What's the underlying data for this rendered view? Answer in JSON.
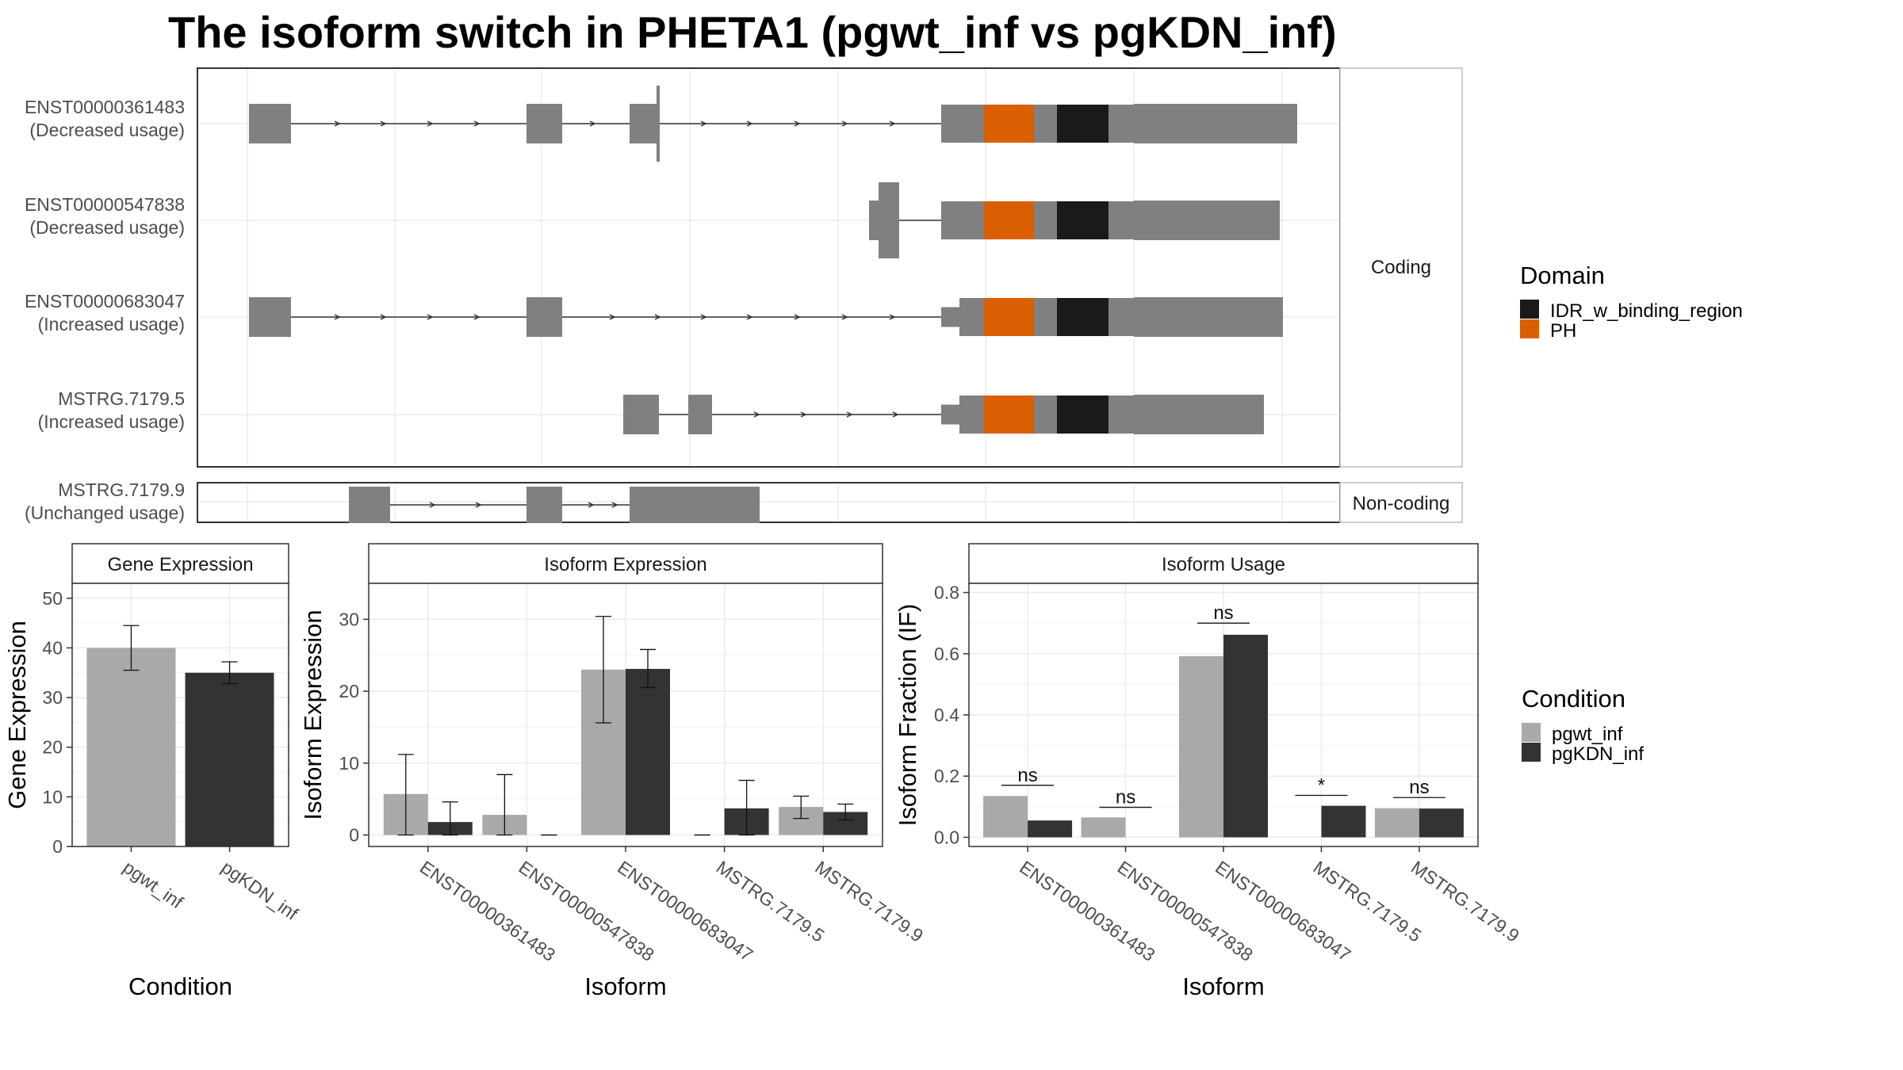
{
  "title": "The isoform switch in PHETA1 (pgwt_inf vs pgKDN_inf)",
  "colors": {
    "exon": "#808080",
    "IDR_w_binding_region": "#1a1a1a",
    "PH": "#d95f02",
    "pgwt_inf": "#a9a9a9",
    "pgKDN_inf": "#333333",
    "grid": "#ebebeb",
    "strip_bg": "#ffffff"
  },
  "structure": {
    "coding_strip": "Coding",
    "noncoding_strip": "Non-coding",
    "isoforms": [
      {
        "id": "ENST00000361483",
        "usage": "(Decreased usage)",
        "group": "coding"
      },
      {
        "id": "ENST00000547838",
        "usage": "(Decreased usage)",
        "group": "coding"
      },
      {
        "id": "ENST00000683047",
        "usage": "(Increased usage)",
        "group": "coding"
      },
      {
        "id": "MSTRG.7179.5",
        "usage": "(Increased usage)",
        "group": "coding"
      },
      {
        "id": "MSTRG.7179.9",
        "usage": "(Unchanged usage)",
        "group": "noncoding"
      }
    ]
  },
  "legends": {
    "domain_title": "Domain",
    "domain_items": [
      {
        "label": "IDR_w_binding_region",
        "color": "#1a1a1a"
      },
      {
        "label": "PH",
        "color": "#d95f02"
      }
    ],
    "condition_title": "Condition",
    "condition_items": [
      {
        "label": "pgwt_inf",
        "color": "#a9a9a9"
      },
      {
        "label": "pgKDN_inf",
        "color": "#333333"
      }
    ]
  },
  "chart_data": [
    {
      "type": "bar",
      "title": "Gene Expression",
      "xlabel": "Condition",
      "ylabel": "Gene Expression",
      "categories": [
        "pgwt_inf",
        "pgKDN_inf"
      ],
      "values": [
        40.0,
        35.0
      ],
      "errors": [
        [
          35.5,
          44.5
        ],
        [
          32.8,
          37.2
        ]
      ],
      "ylim": [
        0,
        53
      ],
      "yticks": [
        0,
        10,
        20,
        30,
        40,
        50
      ]
    },
    {
      "type": "bar",
      "title": "Isoform Expression",
      "xlabel": "Isoform",
      "ylabel": "Isoform Expression",
      "categories": [
        "ENST00000361483",
        "ENST00000547838",
        "ENST00000683047",
        "MSTRG.7179.5",
        "MSTRG.7179.9"
      ],
      "series": [
        {
          "name": "pgwt_inf",
          "values": [
            5.7,
            2.8,
            23.0,
            0.0,
            3.9
          ],
          "errors": [
            [
              0.0,
              11.2
            ],
            [
              0.0,
              8.4
            ],
            [
              15.6,
              30.4
            ],
            [
              0.0,
              0.0
            ],
            [
              2.3,
              5.4
            ]
          ]
        },
        {
          "name": "pgKDN_inf",
          "values": [
            1.8,
            0.0,
            23.1,
            3.7,
            3.2
          ],
          "errors": [
            [
              0.0,
              4.6
            ],
            [
              0.0,
              0.0
            ],
            [
              20.5,
              25.8
            ],
            [
              0.0,
              7.6
            ],
            [
              2.1,
              4.3
            ]
          ]
        }
      ],
      "ylim": [
        -1.6,
        35.0
      ],
      "yticks": [
        0,
        10,
        20,
        30
      ]
    },
    {
      "type": "bar",
      "title": "Isoform Usage",
      "xlabel": "Isoform",
      "ylabel": "Isoform Fraction (IF)",
      "categories": [
        "ENST00000361483",
        "ENST00000547838",
        "ENST00000683047",
        "MSTRG.7179.5",
        "MSTRG.7179.9"
      ],
      "series": [
        {
          "name": "pgwt_inf",
          "values": [
            0.135,
            0.065,
            0.592,
            0.0,
            0.095
          ]
        },
        {
          "name": "pgKDN_inf",
          "values": [
            0.055,
            0.0,
            0.662,
            0.103,
            0.094
          ]
        }
      ],
      "significance": [
        {
          "label": "ns",
          "y": 0.17
        },
        {
          "label": "ns",
          "y": 0.098
        },
        {
          "label": "ns",
          "y": 0.7
        },
        {
          "label": "*",
          "y": 0.137
        },
        {
          "label": "ns",
          "y": 0.13
        }
      ],
      "ylim": [
        -0.03,
        0.83
      ],
      "yticks": [
        0.0,
        0.2,
        0.4,
        0.6,
        0.8
      ]
    }
  ]
}
